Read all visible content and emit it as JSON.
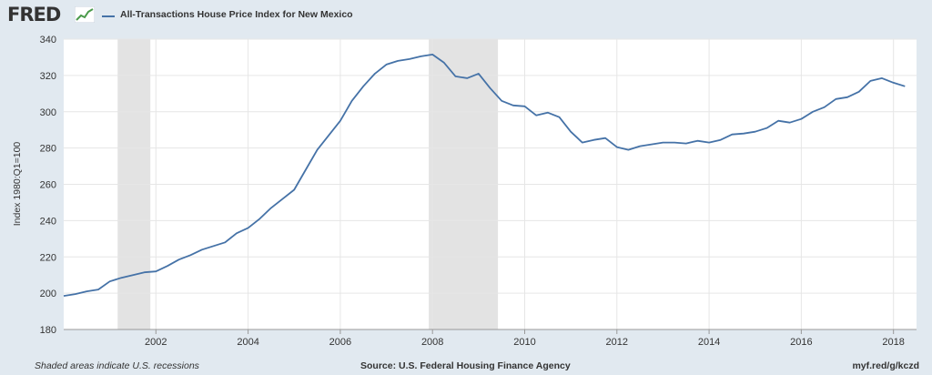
{
  "header": {
    "logo_text": "FRED",
    "legend_label": "All-Transactions House Price Index for New Mexico"
  },
  "footer": {
    "note": "Shaded areas indicate U.S. recessions",
    "source": "Source: U.S. Federal Housing Finance Agency",
    "url": "myf.red/g/kczd"
  },
  "colors": {
    "background": "#e1e9f0",
    "plot_background": "#ffffff",
    "series": "#4572a7",
    "recession": "#e3e3e3",
    "grid": "#e6e6e6"
  },
  "chart_data": {
    "type": "line",
    "title": "",
    "ylabel": "Index 1980:Q1=100",
    "xlabel": "",
    "xlim": [
      2000.0,
      2018.5
    ],
    "ylim": [
      180,
      340
    ],
    "yticks": [
      180,
      200,
      220,
      240,
      260,
      280,
      300,
      320,
      340
    ],
    "xticks": [
      2002,
      2004,
      2006,
      2008,
      2010,
      2012,
      2014,
      2016,
      2018
    ],
    "grid": true,
    "legend": "top-left",
    "recessions": [
      [
        2001.17,
        2001.88
      ],
      [
        2007.92,
        2009.42
      ]
    ],
    "series": [
      {
        "name": "All-Transactions House Price Index for New Mexico",
        "x": [
          2000.0,
          2000.25,
          2000.5,
          2000.75,
          2001.0,
          2001.25,
          2001.5,
          2001.75,
          2002.0,
          2002.25,
          2002.5,
          2002.75,
          2003.0,
          2003.25,
          2003.5,
          2003.75,
          2004.0,
          2004.25,
          2004.5,
          2004.75,
          2005.0,
          2005.25,
          2005.5,
          2005.75,
          2006.0,
          2006.25,
          2006.5,
          2006.75,
          2007.0,
          2007.25,
          2007.5,
          2007.75,
          2008.0,
          2008.25,
          2008.5,
          2008.75,
          2009.0,
          2009.25,
          2009.5,
          2009.75,
          2010.0,
          2010.25,
          2010.5,
          2010.75,
          2011.0,
          2011.25,
          2011.5,
          2011.75,
          2012.0,
          2012.25,
          2012.5,
          2012.75,
          2013.0,
          2013.25,
          2013.5,
          2013.75,
          2014.0,
          2014.25,
          2014.5,
          2014.75,
          2015.0,
          2015.25,
          2015.5,
          2015.75,
          2016.0,
          2016.25,
          2016.5,
          2016.75,
          2017.0,
          2017.25,
          2017.5,
          2017.75,
          2018.0,
          2018.25
        ],
        "y": [
          198.5,
          199.5,
          201,
          202,
          206.5,
          208.5,
          210,
          211.5,
          212,
          215,
          218.5,
          221,
          224,
          226,
          228,
          233,
          236,
          241,
          247,
          252,
          257,
          268,
          279,
          287,
          295,
          306,
          314,
          321,
          326,
          328,
          329,
          330.5,
          331.5,
          327,
          319.5,
          318.5,
          321,
          313,
          306,
          303.5,
          303,
          298,
          299.5,
          297,
          289,
          283,
          284.5,
          285.5,
          280.5,
          279,
          281,
          282,
          283,
          283,
          282.5,
          284,
          283,
          284.5,
          287.5,
          288,
          289,
          291,
          295,
          294,
          296,
          300,
          302.5,
          307,
          308,
          311,
          317,
          318.5,
          316,
          314
        ]
      }
    ]
  }
}
